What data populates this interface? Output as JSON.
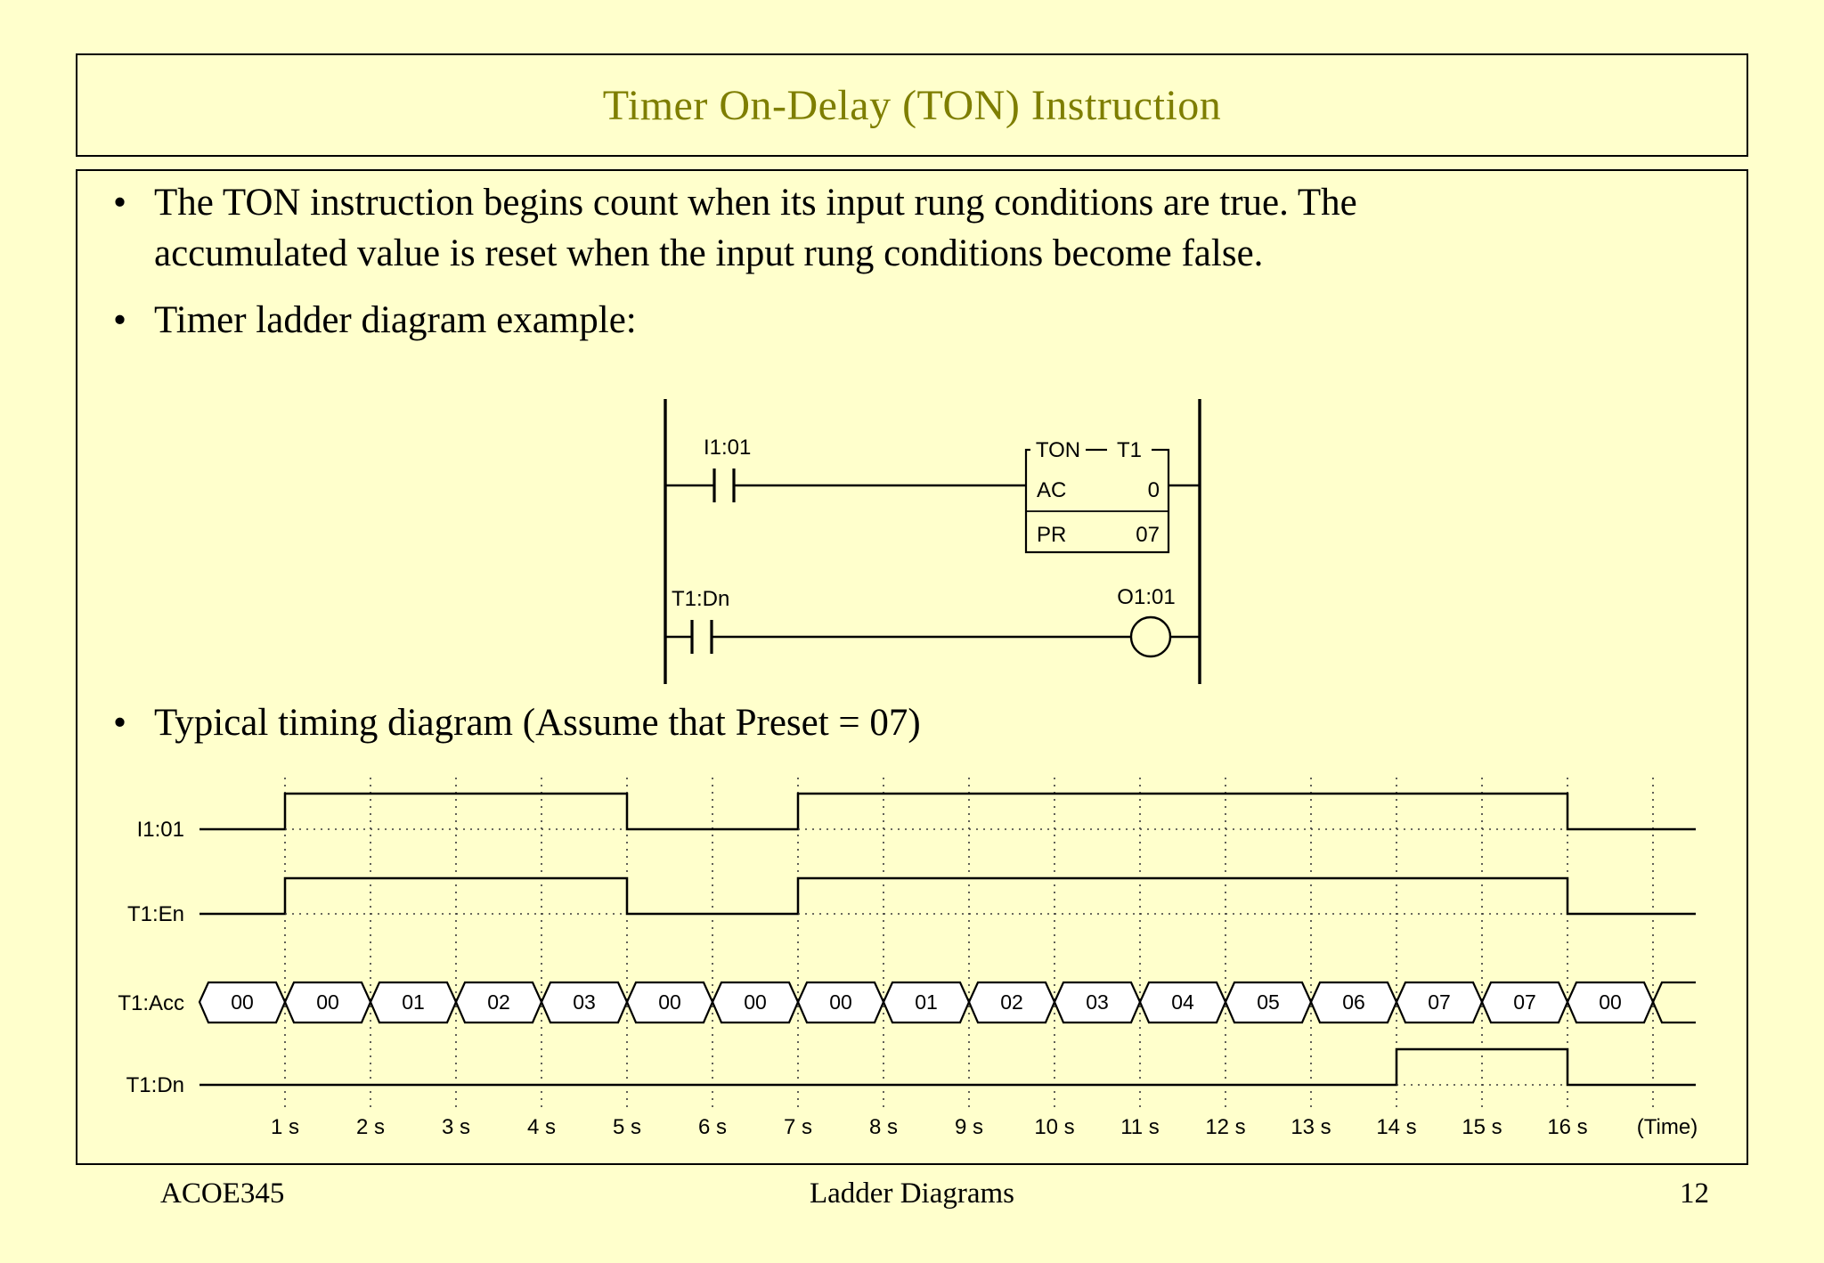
{
  "slide": {
    "title": "Timer On-Delay (TON) Instruction",
    "bullets": {
      "marker": "•",
      "b1_line1": "The TON instruction begins count when its input rung conditions are true. The",
      "b1_line2": "accumulated value is reset when the input rung conditions become false.",
      "b2": "Timer ladder diagram example:",
      "b3": "Typical timing diagram (Assume that Preset = 07)"
    },
    "footer": {
      "course": "ACOE345",
      "center": "Ladder Diagrams",
      "page": "12"
    }
  },
  "colors": {
    "background": "#FFFFCC",
    "title_text": "#7E7E00",
    "line": "#000000",
    "grid_dots": "#3A3A3A",
    "acc_cell_fill": "#FFFFFF"
  },
  "ladder": {
    "contact1_label": "I1:01",
    "timer_type": "TON",
    "timer_name": "T1",
    "acc_label": "AC",
    "acc_value": "0",
    "preset_label": "PR",
    "preset_value": "07",
    "contact2_label": "T1:Dn",
    "coil_label": "O1:01"
  },
  "chart_data": {
    "type": "timing",
    "signals": [
      "I1:01",
      "T1:En",
      "T1:Acc",
      "T1:Dn"
    ],
    "highs": {
      "i1_01": [
        [
          1,
          5
        ],
        [
          7,
          16
        ]
      ],
      "t1_en": [
        [
          1,
          5
        ],
        [
          7,
          16
        ]
      ],
      "t1_dn": [
        [
          14,
          16
        ]
      ]
    },
    "acc_values": [
      "00",
      "00",
      "01",
      "02",
      "03",
      "00",
      "00",
      "00",
      "01",
      "02",
      "03",
      "04",
      "05",
      "06",
      "07",
      "07",
      "00"
    ],
    "time_ticks": [
      "1 s",
      "2 s",
      "3 s",
      "4 s",
      "5 s",
      "6 s",
      "7 s",
      "8 s",
      "9 s",
      "10 s",
      "11 s",
      "12 s",
      "13 s",
      "14 s",
      "15 s",
      "16 s"
    ],
    "time_axis_label": "(Time)",
    "x_range_seconds": [
      0,
      17
    ]
  }
}
